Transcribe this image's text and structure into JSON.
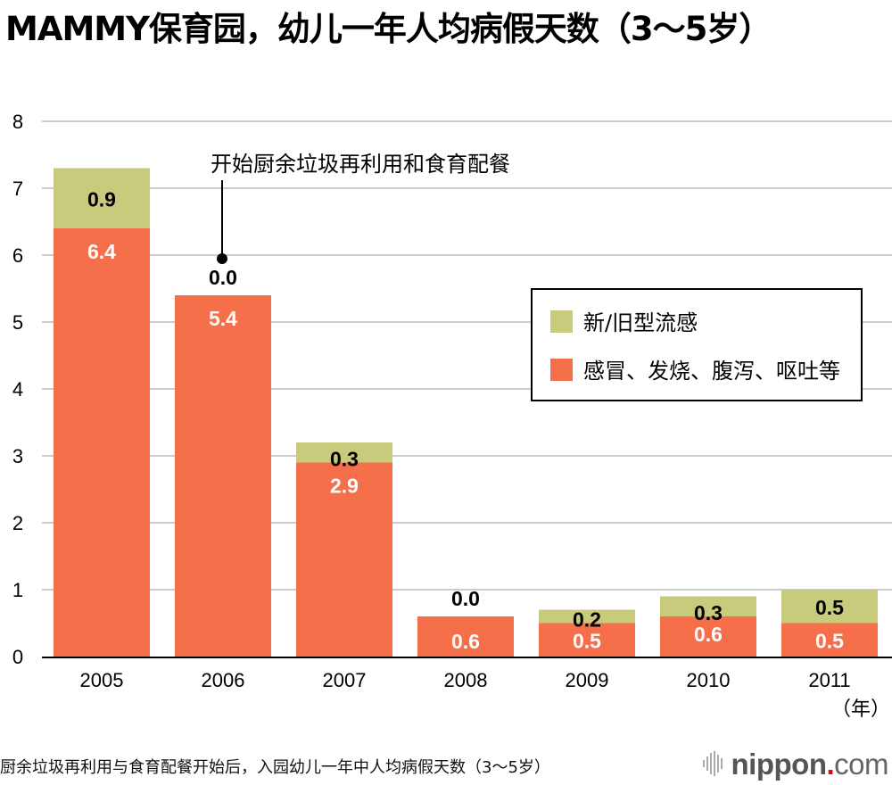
{
  "title": "MAMMY保育园，幼儿一年人均病假天数（3～5岁）",
  "footer": {
    "caption": "厨余垃圾再利用与食育配餐开始后，入园幼儿一年中人均病假天数（3～5岁）",
    "brand_name": "nippon",
    "brand_dot": ".",
    "brand_tld": "com"
  },
  "colors": {
    "influenza": "#c8cb7c",
    "cold_fever": "#f46f4a",
    "gridline": "#cccccc",
    "axis": "#000000"
  },
  "chart_data": {
    "type": "bar",
    "stacked": true,
    "title": "MAMMY保育园，幼儿一年人均病假天数（3～5岁）",
    "xlabel": "（年）",
    "ylabel": "",
    "categories": [
      "2005",
      "2006",
      "2007",
      "2008",
      "2009",
      "2010",
      "2011"
    ],
    "series": [
      {
        "name": "感冒、发烧、腹泻、呕吐等",
        "key": "cold_fever",
        "values": [
          6.4,
          5.4,
          2.9,
          0.6,
          0.5,
          0.6,
          0.5
        ]
      },
      {
        "name": "新/旧型流感",
        "key": "influenza",
        "values": [
          0.9,
          0.0,
          0.3,
          0.0,
          0.2,
          0.3,
          0.5
        ]
      }
    ],
    "data_labels": {
      "cold_fever": [
        "6.4",
        "5.4",
        "2.9",
        "0.6",
        "0.5",
        "0.6",
        "0.5"
      ],
      "influenza": [
        "0.9",
        "0.0",
        "0.3",
        "0.0",
        "0.2",
        "0.3",
        "0.5"
      ]
    },
    "ylim": [
      0,
      8
    ],
    "yticks": [
      "0",
      "1",
      "2",
      "3",
      "4",
      "5",
      "6",
      "7",
      "8"
    ],
    "grid": true,
    "legend": {
      "placement": "center-right",
      "entries": [
        {
          "label": "新/旧型流感",
          "key": "influenza"
        },
        {
          "label": "感冒、发烧、腹泻、呕吐等",
          "key": "cold_fever"
        }
      ]
    },
    "annotations": [
      {
        "text": "开始厨余垃圾再利用和食育配餐",
        "category": "2006",
        "value": 6.2
      }
    ]
  }
}
